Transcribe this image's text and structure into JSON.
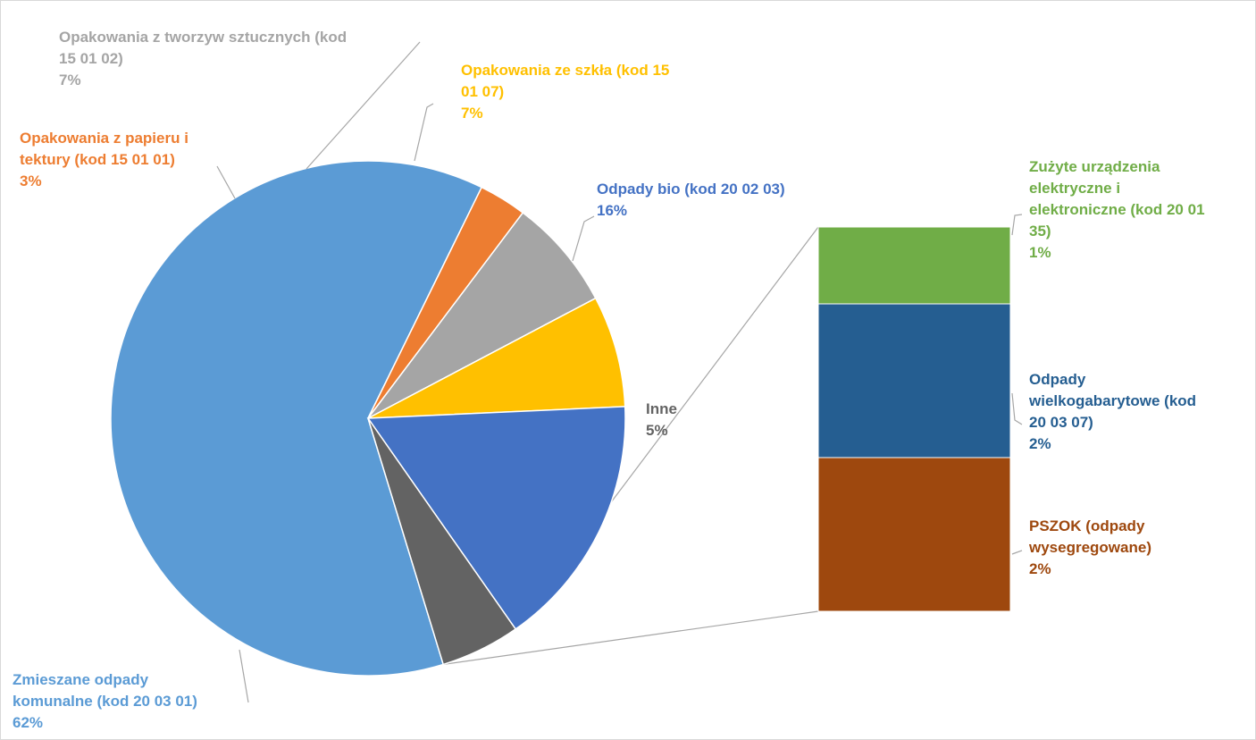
{
  "chart_data": {
    "type": "pie",
    "variant": "bar-of-pie",
    "slices": [
      {
        "label_lines": [
          "Zmieszane odpady",
          "komunalne (kod 20 03 01)"
        ],
        "value": 62,
        "value_label": "62%",
        "color": "#5B9BD5"
      },
      {
        "label_lines": [
          "Opakowania z papieru i",
          "tektury (kod 15 01 01)"
        ],
        "value": 3,
        "value_label": "3%",
        "color": "#ED7D31"
      },
      {
        "label_lines": [
          "Opakowania z tworzyw sztucznych (kod",
          "15 01 02)"
        ],
        "value": 7,
        "value_label": "7%",
        "color": "#A5A5A5"
      },
      {
        "label_lines": [
          "Opakowania ze szkła (kod 15",
          "01 07)"
        ],
        "value": 7,
        "value_label": "7%",
        "color": "#FFC000"
      },
      {
        "label_lines": [
          "Odpady bio (kod 20 02 03)"
        ],
        "value": 16,
        "value_label": "16%",
        "color": "#4472C4"
      },
      {
        "label_lines": [
          "Inne"
        ],
        "value": 5,
        "value_label": "5%",
        "color": "#636363"
      }
    ],
    "breakout_of": "Inne",
    "breakout": [
      {
        "label_lines": [
          "Zużyte urządzenia",
          "elektryczne i",
          "elektroniczne (kod 20 01",
          "35)"
        ],
        "value": 1,
        "value_label": "1%",
        "color": "#70AD47"
      },
      {
        "label_lines": [
          "Odpady",
          "wielkogabarytowe (kod",
          "20 03 07)"
        ],
        "value": 2,
        "value_label": "2%",
        "color": "#255E91"
      },
      {
        "label_lines": [
          "PSZOK (odpady",
          "wysegregowane)"
        ],
        "value": 2,
        "value_label": "2%",
        "color": "#9E480E"
      }
    ]
  }
}
